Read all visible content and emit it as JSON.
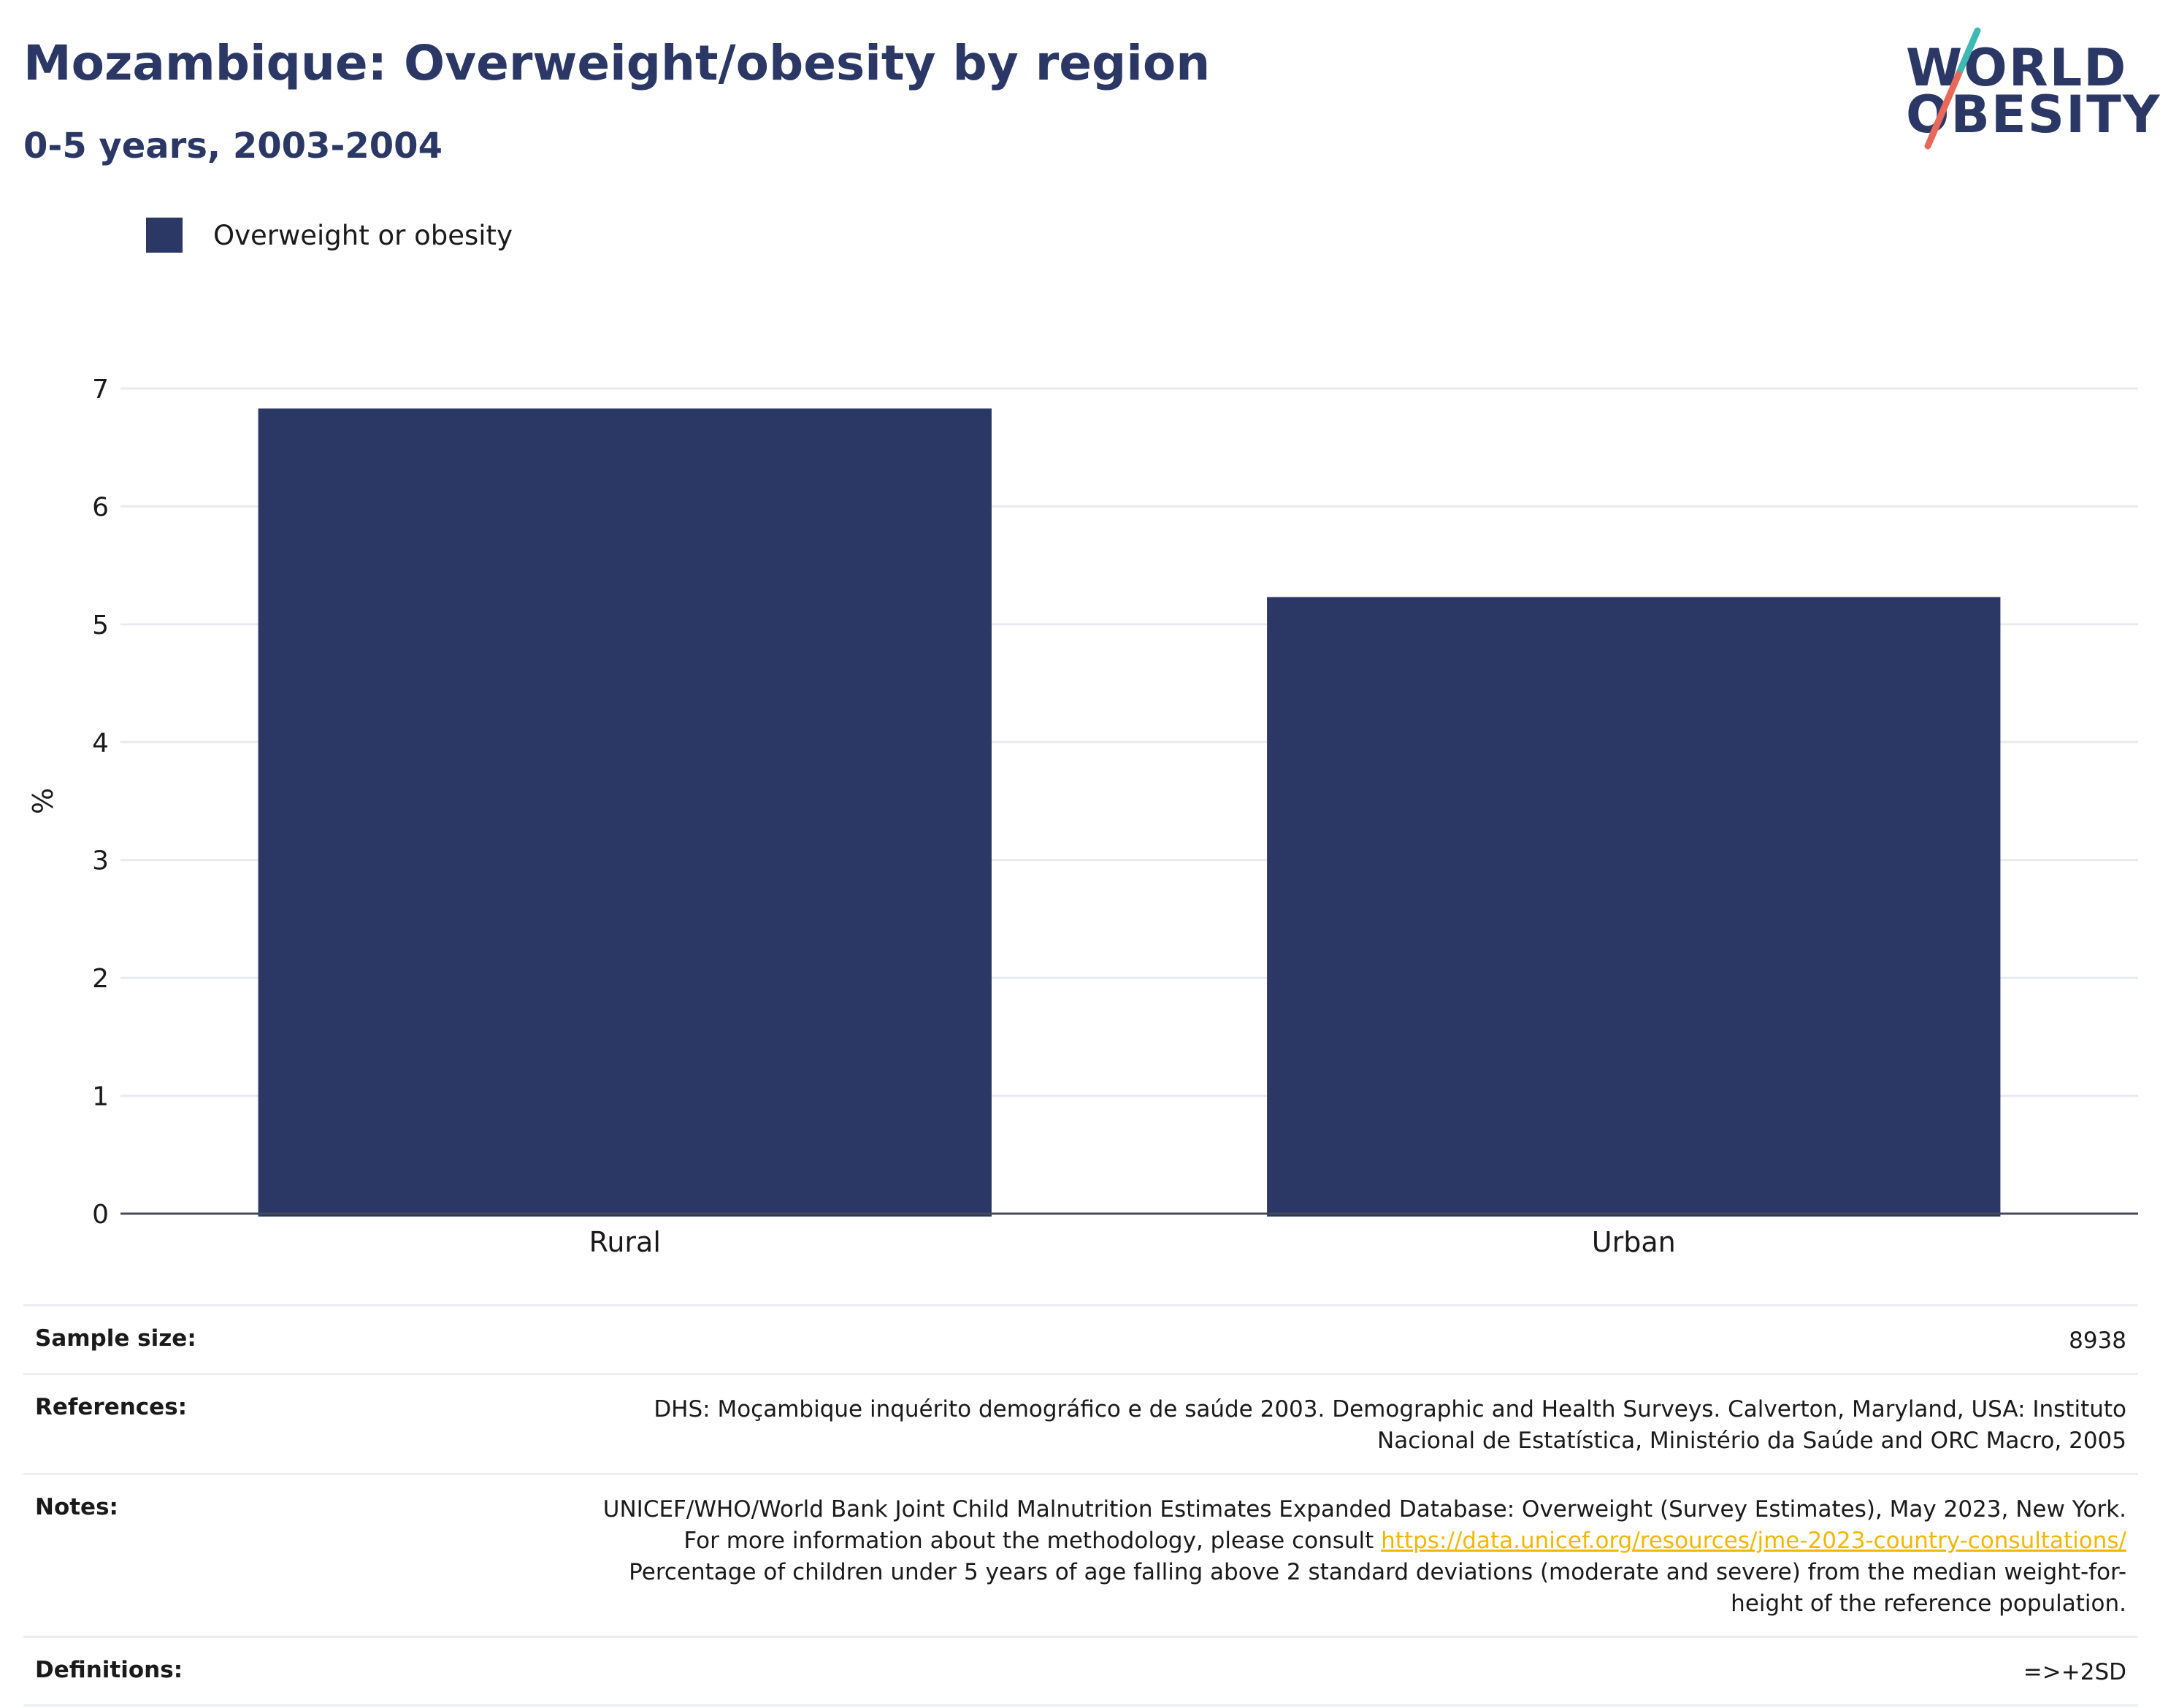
{
  "header": {
    "title": "Mozambique: Overweight/obesity by region",
    "subtitle": "0-5 years, 2003-2004"
  },
  "logo": {
    "line1": "WORLD",
    "line2": "OBESITY",
    "colors": {
      "text": "#2b3865",
      "slash_top": "#3fb9b4",
      "slash_bottom": "#e8685a"
    }
  },
  "legend": {
    "label": "Overweight or obesity",
    "color": "#2b3865"
  },
  "chart_data": {
    "type": "bar",
    "categories": [
      "Rural",
      "Urban"
    ],
    "series": [
      {
        "name": "Overweight or obesity",
        "values": [
          6.83,
          5.23
        ],
        "color": "#2b3865"
      }
    ],
    "ylabel": "%",
    "xlabel": "",
    "ylim": [
      0,
      7
    ],
    "yticks": [
      0,
      1,
      2,
      3,
      4,
      5,
      6,
      7
    ],
    "grid": true,
    "legend_position": "top-left"
  },
  "info": {
    "sample_size_label": "Sample size:",
    "sample_size_value": "8938",
    "references_label": "References:",
    "references_value": "DHS: Moçambique inquérito demográfico e de saúde 2003. Demographic and Health Surveys. Calverton, Maryland, USA: Instituto Nacional de Estatística, Ministério da Saúde and ORC Macro, 2005",
    "notes_label": "Notes:",
    "notes_text_before": "UNICEF/WHO/World Bank Joint Child Malnutrition Estimates Expanded Database: Overweight (Survey Estimates), May 2023, New York. For more information about the methodology, please consult ",
    "notes_link": "https://data.unicef.org/resources/jme-2023-country-consultations/",
    "notes_text_after": " Percentage of children under 5 years of age falling above 2 standard deviations (moderate and severe) from the median weight-for-height of the reference population.",
    "definitions_label": "Definitions:",
    "definitions_value": "=>+2SD"
  }
}
